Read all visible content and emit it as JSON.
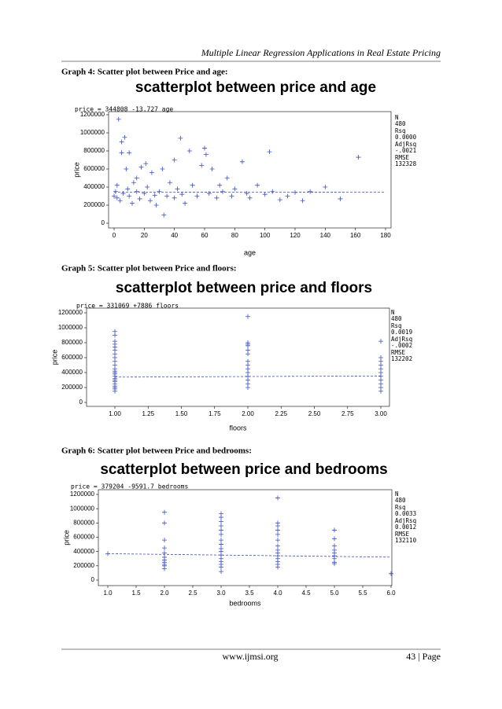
{
  "header": {
    "title": "Multiple Linear Regression Applications in Real Estate Pricing"
  },
  "captions": [
    "Graph 4: Scatter plot between Price and age:",
    "Graph 5: Scatter plot between Price and floors:",
    "Graph 6: Scatter plot between Price and bedrooms:"
  ],
  "chart_data": [
    {
      "type": "scatter",
      "title": "scatterplot between price and age",
      "equation": "price = 344808 -13.727 age",
      "x_label": "age",
      "y_label": "price",
      "color": "#3b4fc4",
      "fit": {
        "intercept": 344808,
        "slope": -13.727
      },
      "xlim": [
        0,
        180
      ],
      "xticks": [
        0,
        20,
        40,
        60,
        80,
        100,
        120,
        140,
        160,
        180
      ],
      "ylim": [
        0,
        1200000
      ],
      "yticks": [
        0,
        200000,
        400000,
        600000,
        800000,
        1000000,
        1200000
      ],
      "stats": [
        {
          "label": "N",
          "value": "480"
        },
        {
          "label": "Rsq",
          "value": "0.0000"
        },
        {
          "label": "AdjRsq",
          "value": "-.0021"
        },
        {
          "label": "RMSE",
          "value": "132328"
        }
      ],
      "x": [
        0,
        1,
        2,
        2,
        3,
        4,
        5,
        5,
        6,
        7,
        8,
        9,
        10,
        10,
        12,
        13,
        15,
        15,
        17,
        18,
        20,
        21,
        22,
        24,
        25,
        27,
        28,
        30,
        32,
        33,
        35,
        37,
        40,
        40,
        42,
        44,
        45,
        47,
        50,
        52,
        55,
        58,
        60,
        61,
        63,
        65,
        68,
        70,
        72,
        75,
        78,
        80,
        85,
        88,
        90,
        95,
        100,
        103,
        105,
        110,
        115,
        120,
        125,
        130,
        140,
        150,
        162
      ],
      "values": [
        300000,
        350000,
        280000,
        420000,
        1150000,
        250000,
        900000,
        780000,
        330000,
        950000,
        600000,
        380000,
        300000,
        780000,
        220000,
        450000,
        350000,
        500000,
        270000,
        620000,
        330000,
        660000,
        400000,
        250000,
        560000,
        310000,
        200000,
        350000,
        600000,
        90000,
        300000,
        450000,
        700000,
        280000,
        380000,
        940000,
        320000,
        220000,
        800000,
        420000,
        300000,
        640000,
        830000,
        760000,
        330000,
        600000,
        280000,
        420000,
        350000,
        500000,
        300000,
        380000,
        680000,
        330000,
        280000,
        420000,
        320000,
        790000,
        350000,
        260000,
        300000,
        340000,
        250000,
        350000,
        400000,
        270000,
        730000
      ]
    },
    {
      "type": "scatter",
      "title": "scatterplot between price and floors",
      "equation": "price = 331069 +7886 floors",
      "x_label": "floors",
      "y_label": "price",
      "color": "#3b4fc4",
      "fit": {
        "intercept": 331069,
        "slope": 7886
      },
      "xlim": [
        1,
        3
      ],
      "xticks": [
        {
          "value": 1,
          "label": "1.00"
        },
        {
          "value": 1.25,
          "label": "1.25"
        },
        {
          "value": 1.5,
          "label": "1.50"
        },
        {
          "value": 1.75,
          "label": "1.75"
        },
        {
          "value": 2,
          "label": "2.00"
        },
        {
          "value": 2.25,
          "label": "2.25"
        },
        {
          "value": 2.5,
          "label": "2.50"
        },
        {
          "value": 2.75,
          "label": "2.75"
        },
        {
          "value": 3,
          "label": "3.00"
        }
      ],
      "ylim": [
        0,
        1200000
      ],
      "yticks": [
        0,
        200000,
        400000,
        600000,
        800000,
        1000000,
        1200000
      ],
      "stats": [
        {
          "label": "N",
          "value": "480"
        },
        {
          "label": "Rsq",
          "value": "0.0019"
        },
        {
          "label": "AdjRsq",
          "value": "-.0002"
        },
        {
          "label": "RMSE",
          "value": "132202"
        }
      ],
      "x": [
        1,
        1,
        1,
        1,
        1,
        1,
        1,
        1,
        1,
        1,
        1,
        1,
        1,
        1,
        1,
        1,
        1,
        1,
        1,
        1,
        1,
        1,
        1,
        2,
        2,
        2,
        2,
        2,
        2,
        2,
        2,
        2,
        2,
        2,
        2,
        2,
        2,
        3,
        3,
        3,
        3,
        3,
        3,
        3,
        3,
        3,
        3,
        3
      ],
      "values": [
        950000,
        900000,
        820000,
        780000,
        740000,
        700000,
        650000,
        600000,
        550000,
        500000,
        450000,
        420000,
        400000,
        380000,
        350000,
        320000,
        300000,
        280000,
        250000,
        220000,
        200000,
        180000,
        150000,
        1150000,
        800000,
        780000,
        760000,
        700000,
        650000,
        550000,
        500000,
        450000,
        400000,
        350000,
        300000,
        250000,
        200000,
        820000,
        600000,
        550000,
        500000,
        450000,
        400000,
        350000,
        300000,
        250000,
        200000,
        150000
      ]
    },
    {
      "type": "scatter",
      "title": "scatterplot between price and bedrooms",
      "equation": "price = 379204 -9591.7 bedrooms",
      "x_label": "bedrooms",
      "y_label": "price",
      "color": "#3b4fc4",
      "fit": {
        "intercept": 379204,
        "slope": -9591.7
      },
      "xlim": [
        1,
        6
      ],
      "xticks": [
        {
          "value": 1,
          "label": "1.0"
        },
        {
          "value": 1.5,
          "label": "1.5"
        },
        {
          "value": 2,
          "label": "2.0"
        },
        {
          "value": 2.5,
          "label": "2.5"
        },
        {
          "value": 3,
          "label": "3.0"
        },
        {
          "value": 3.5,
          "label": "3.5"
        },
        {
          "value": 4,
          "label": "4.0"
        },
        {
          "value": 4.5,
          "label": "4.5"
        },
        {
          "value": 5,
          "label": "5.0"
        },
        {
          "value": 5.5,
          "label": "5.5"
        },
        {
          "value": 6,
          "label": "6.0"
        }
      ],
      "ylim": [
        0,
        1200000
      ],
      "yticks": [
        0,
        200000,
        400000,
        600000,
        800000,
        1000000,
        1200000
      ],
      "stats": [
        {
          "label": "N",
          "value": "480"
        },
        {
          "label": "Rsq",
          "value": "0.0033"
        },
        {
          "label": "AdjRsq",
          "value": "0.0012"
        },
        {
          "label": "RMSE",
          "value": "132110"
        }
      ],
      "x": [
        1,
        2,
        2,
        2,
        2,
        2,
        2,
        2,
        2,
        2,
        2,
        2,
        3,
        3,
        3,
        3,
        3,
        3,
        3,
        3,
        3,
        3,
        3,
        3,
        3,
        3,
        3,
        3,
        4,
        4,
        4,
        4,
        4,
        4,
        4,
        4,
        4,
        4,
        4,
        4,
        4,
        4,
        5,
        5,
        5,
        5,
        5,
        5,
        5,
        5,
        5,
        6
      ],
      "values": [
        370000,
        950000,
        800000,
        560000,
        450000,
        380000,
        320000,
        280000,
        250000,
        220000,
        200000,
        160000,
        930000,
        880000,
        820000,
        760000,
        700000,
        640000,
        560000,
        500000,
        440000,
        400000,
        350000,
        300000,
        260000,
        220000,
        180000,
        120000,
        1150000,
        800000,
        760000,
        700000,
        640000,
        560000,
        480000,
        420000,
        380000,
        340000,
        300000,
        260000,
        220000,
        180000,
        700000,
        580000,
        480000,
        420000,
        380000,
        340000,
        300000,
        250000,
        230000,
        90000
      ]
    }
  ],
  "footer": {
    "site": "www.ijmsi.org",
    "page": "43 | Page"
  }
}
